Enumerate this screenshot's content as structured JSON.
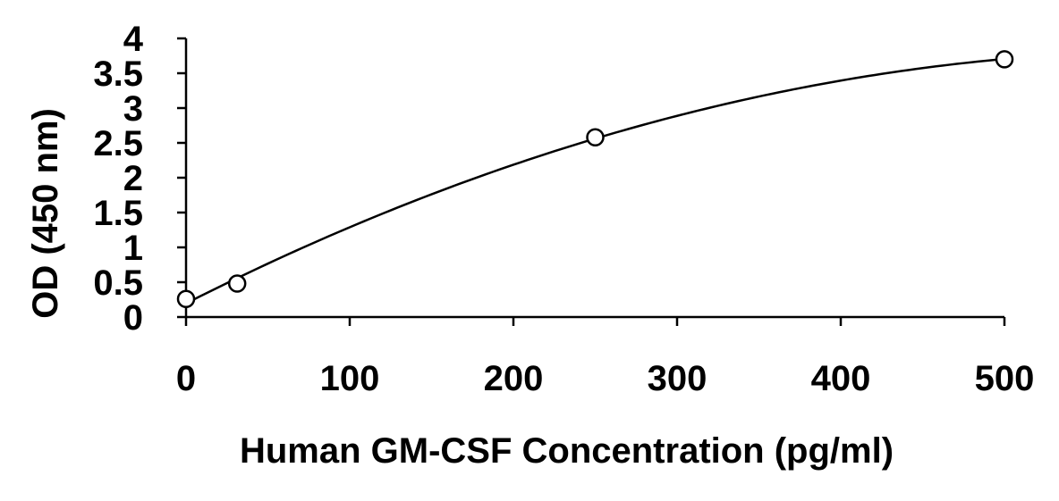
{
  "chart_data": {
    "type": "scatter",
    "title": "",
    "xlabel": "Human GM-CSF Concentration (pg/ml)",
    "ylabel": "OD (450 nm)",
    "xlim": [
      0,
      500
    ],
    "ylim": [
      0,
      4
    ],
    "x_ticks": [
      0,
      100,
      200,
      300,
      400,
      500
    ],
    "y_ticks": [
      0,
      0.5,
      1,
      1.5,
      2,
      2.5,
      3,
      3.5,
      4
    ],
    "y_tick_labels": [
      "0",
      "0.5",
      "1",
      "1.5",
      "2",
      "2.5",
      "3",
      "3.5",
      "4"
    ],
    "grid": false,
    "legend": "none",
    "series": [
      {
        "points": [
          {
            "x": 0,
            "y": 0.26
          },
          {
            "x": 31.25,
            "y": 0.48
          },
          {
            "x": 250,
            "y": 2.58
          },
          {
            "x": 500,
            "y": 3.7
          }
        ],
        "marker": "open-circle",
        "trendline": "polynomial-fit"
      }
    ],
    "colors": {
      "line": "#000000",
      "marker": "#000000",
      "axis": "#000000"
    }
  }
}
